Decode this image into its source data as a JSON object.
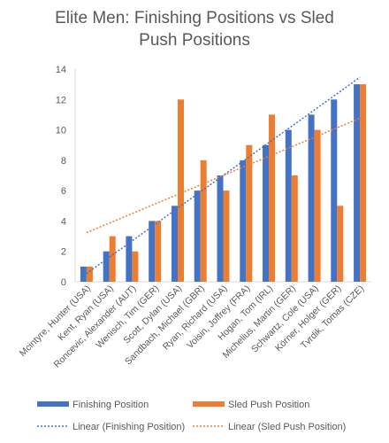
{
  "chart_data": {
    "type": "bar",
    "title": "Elite Men: Finishing Positions vs Sled\nPush Positions",
    "categories": [
      "Mcintyre, Hunter (USA)",
      "Kent, Ryan (USA)",
      "Roncevic, Alexander (AUT)",
      "Wenisch, Tim (GER)",
      "Scott, Dylan (USA)",
      "Sandbach, Michael (GBR)",
      "Ryan, Richard (USA)",
      "Voisin, Joffrey (FRA)",
      "Hogan, Tom (IRL)",
      "Michelius, Martin (GER)",
      "Schwartz, Cole (USA)",
      "Körner, Holger (GER)",
      "Tvrdik, Tomas (CZE)"
    ],
    "series": [
      {
        "name": "Finishing Position",
        "color": "#4472C4",
        "values": [
          1,
          2,
          3,
          4,
          5,
          6,
          7,
          8,
          9,
          10,
          11,
          12,
          13
        ]
      },
      {
        "name": "Sled Push Position",
        "color": "#ED7D31",
        "values": [
          1,
          3,
          2,
          4,
          12,
          8,
          6,
          9,
          11,
          7,
          10,
          5,
          13
        ]
      }
    ],
    "trendlines": [
      {
        "name": "Linear (Finishing Position)",
        "color": "#4472C4",
        "from": 0,
        "to": 14
      },
      {
        "name": "Linear (Sled Push Position)",
        "color": "#ED7D31",
        "from": 2.92,
        "to": 11.08
      }
    ],
    "yticks": [
      "0",
      "2",
      "4",
      "6",
      "8",
      "10",
      "12",
      "14"
    ],
    "ylim": [
      0,
      14
    ],
    "grid": false,
    "legend_position": "bottom"
  }
}
